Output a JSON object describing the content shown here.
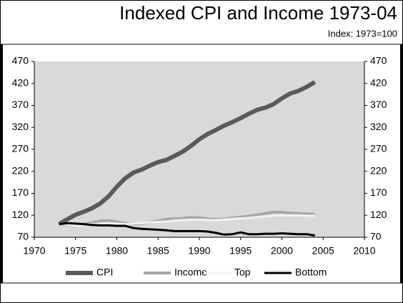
{
  "chart_data": {
    "type": "line",
    "title": "Indexed CPI and Income 1973-04",
    "subtitle": "Index: 1973=100",
    "x": [
      1973,
      1974,
      1975,
      1976,
      1977,
      1978,
      1979,
      1980,
      1981,
      1982,
      1983,
      1984,
      1985,
      1986,
      1987,
      1988,
      1989,
      1990,
      1991,
      1992,
      1993,
      1994,
      1995,
      1996,
      1997,
      1998,
      1999,
      2000,
      2001,
      2002,
      2003,
      2004
    ],
    "series": [
      {
        "name": "CPI",
        "color": "#5a5a5a",
        "values": [
          100,
          111,
          121,
          128,
          136,
          147,
          163,
          185,
          204,
          217,
          224,
          233,
          241,
          246,
          255,
          265,
          278,
          293,
          305,
          314,
          324,
          332,
          341,
          351,
          360,
          365,
          373,
          386,
          397,
          403,
          412,
          423
        ]
      },
      {
        "name": "Income",
        "color": "#a6a6a6",
        "values": [
          100,
          98,
          97,
          100,
          103,
          107,
          108,
          105,
          102,
          100,
          101,
          104,
          107,
          111,
          112,
          113,
          115,
          114,
          112,
          111,
          111,
          114,
          116,
          118,
          121,
          124,
          127,
          127,
          125,
          124,
          123,
          122
        ]
      },
      {
        "name": "Top",
        "color": "#f2f2f2",
        "values": [
          100,
          99,
          96,
          98,
          100,
          101,
          102,
          101,
          100,
          101,
          102,
          104,
          105,
          106,
          108,
          109,
          110,
          110,
          109,
          109,
          110,
          112,
          113,
          114,
          116,
          118,
          119,
          120,
          120,
          120,
          119,
          119
        ]
      },
      {
        "name": "Bottom",
        "color": "#000000",
        "values": [
          100,
          102,
          101,
          100,
          98,
          97,
          97,
          96,
          96,
          91,
          89,
          88,
          87,
          86,
          84,
          84,
          84,
          84,
          83,
          80,
          76,
          77,
          81,
          77,
          77,
          78,
          78,
          79,
          78,
          77,
          77,
          74
        ]
      }
    ],
    "xlim": [
      1970,
      2010
    ],
    "xticks": [
      1970,
      1975,
      1980,
      1985,
      1990,
      1995,
      2000,
      2005,
      2010
    ],
    "ylim": [
      70,
      470
    ],
    "yticks": [
      70,
      120,
      170,
      220,
      270,
      320,
      370,
      420,
      470
    ],
    "y2lim": [
      70,
      470
    ],
    "y2ticks": [
      70,
      120,
      170,
      220,
      270,
      320,
      370,
      420,
      470
    ],
    "legend": "bottom"
  }
}
